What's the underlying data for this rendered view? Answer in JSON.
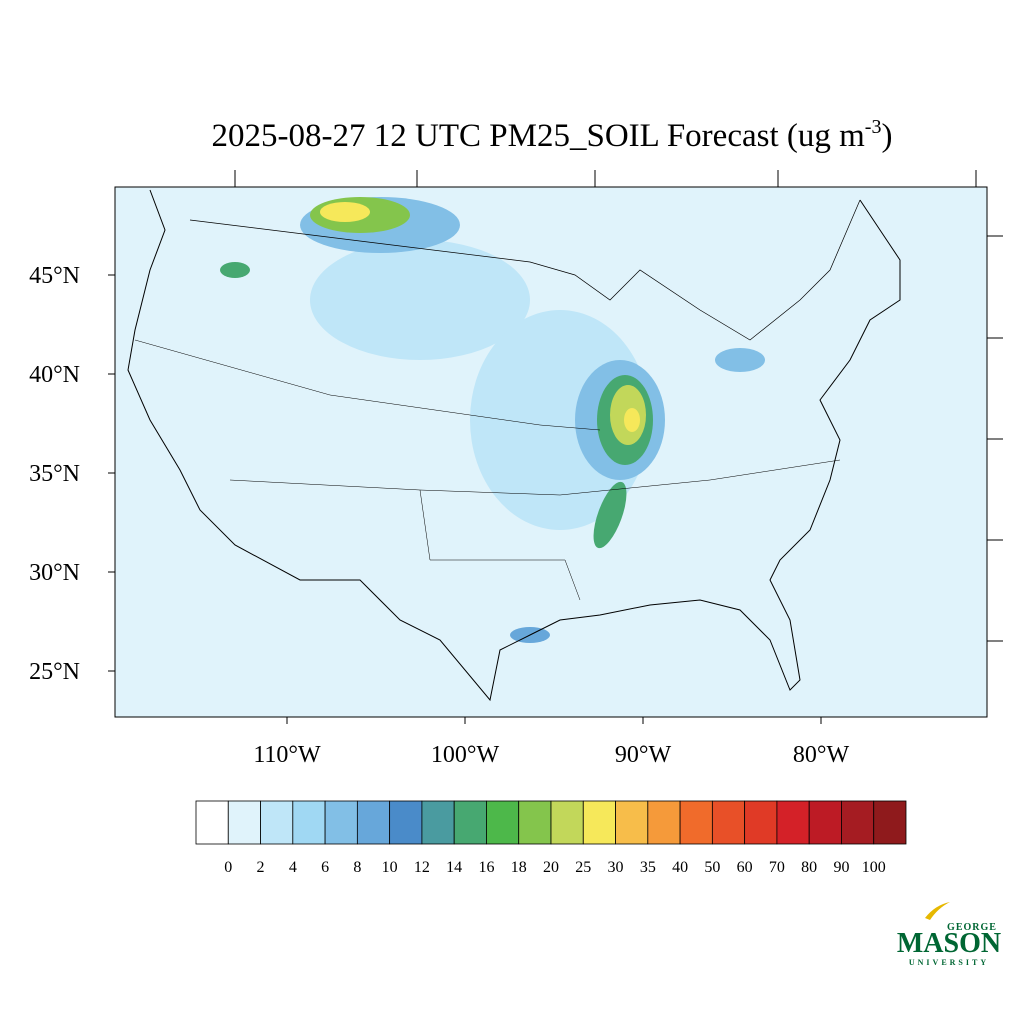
{
  "title": {
    "text": "2025-08-27 12 UTC PM25_SOIL Forecast (ug m",
    "superscript": "-3",
    "end": ")"
  },
  "latitude_labels": [
    "45°N",
    "40°N",
    "35°N",
    "30°N",
    "25°N"
  ],
  "longitude_labels": [
    "110°W",
    "100°W",
    "90°W",
    "80°W"
  ],
  "colorbar": {
    "levels": [
      0,
      2,
      4,
      6,
      8,
      10,
      12,
      14,
      16,
      18,
      20,
      25,
      30,
      35,
      40,
      50,
      60,
      70,
      80,
      90,
      100
    ],
    "colors": [
      "#ffffff",
      "#e0f3fb",
      "#bfe6f8",
      "#a0d8f3",
      "#82bfe6",
      "#67a7da",
      "#4a8bc9",
      "#4a9ba0",
      "#47a871",
      "#4db84a",
      "#84c54c",
      "#c2d75a",
      "#f6e85a",
      "#f7bd4a",
      "#f59a3a",
      "#f06b2b",
      "#e85028",
      "#e03a26",
      "#d42128",
      "#bd1b25",
      "#a51c22",
      "#8f1a1c"
    ]
  },
  "logo": {
    "top": "GEORGE",
    "main": "MASON",
    "bottom": "UNIVERSITY"
  }
}
